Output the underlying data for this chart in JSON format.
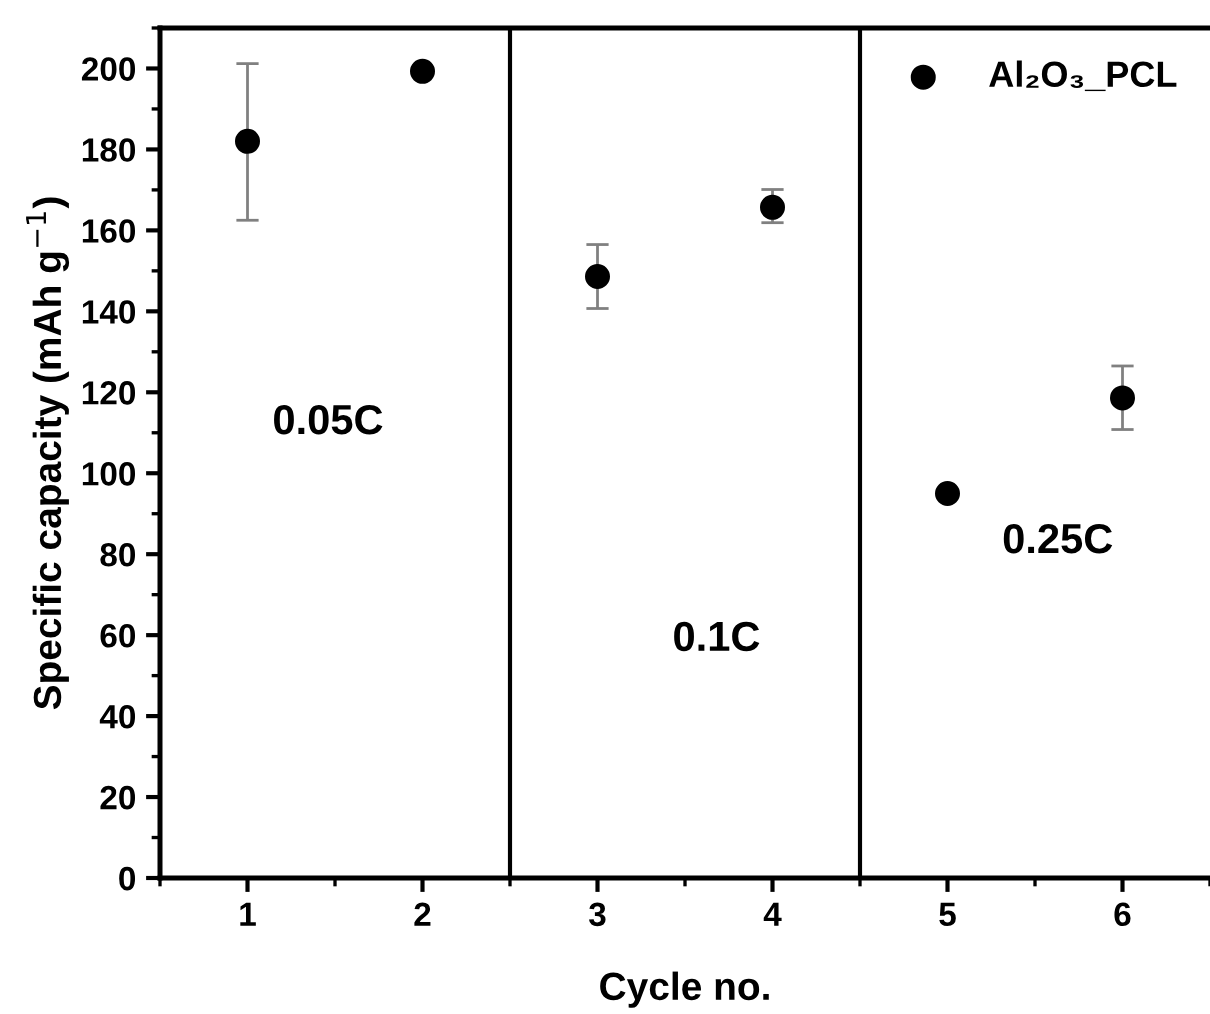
{
  "chart_data": {
    "type": "scatter",
    "xlabel": "Cycle no.",
    "ylabel": "Specific capacity (mAh g$^{−1}$)",
    "x": [
      1,
      2,
      3,
      4,
      5,
      6
    ],
    "series": [
      {
        "name": "Al₂O₃_PCL",
        "color": "#000000",
        "values": [
          182,
          199.3,
          148.6,
          165.7,
          95,
          118.6
        ],
        "errors": [
          [
            162.5,
            201.2
          ],
          null,
          [
            140.7,
            156.5
          ],
          [
            161.9,
            170.1
          ],
          null,
          [
            110.8,
            126.5
          ]
        ]
      }
    ],
    "xlim": [
      0.5,
      6.5
    ],
    "xticks": [
      1,
      2,
      3,
      4,
      5,
      6
    ],
    "ylim": [
      0,
      210
    ],
    "yticks": [
      0,
      20,
      40,
      60,
      80,
      100,
      120,
      140,
      160,
      180,
      200
    ],
    "ref_lines": [
      {
        "axis": "x",
        "value": 2.5,
        "color": "#000000"
      },
      {
        "axis": "x",
        "value": 4.5,
        "color": "#000000"
      }
    ],
    "annotations": [
      "0.05C",
      "0.1C",
      "0.25C"
    ],
    "marker": "circle",
    "legend": "top right",
    "grid": false
  }
}
